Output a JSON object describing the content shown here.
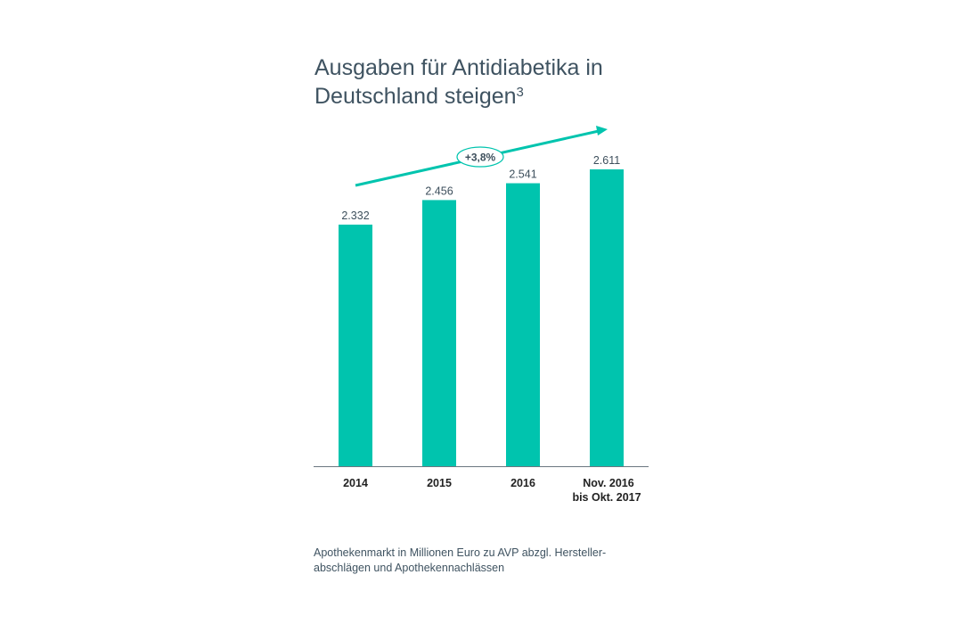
{
  "title": {
    "main": "Ausgaben für Antidiabetika in Deutschland steigen",
    "superscript": "3"
  },
  "chart_data": {
    "type": "bar",
    "categories": [
      "2014",
      "2015",
      "2016",
      "Nov. 2016|bis Okt. 2017"
    ],
    "values": [
      2332,
      2456,
      2541,
      2611
    ],
    "value_labels": [
      "2.332",
      "2.456",
      "2.541",
      "2.611"
    ],
    "ylim": [
      1112,
      2611
    ],
    "trend_annotation": "+3,8%",
    "bar_color": "#00c4ae",
    "xlabel": "",
    "ylabel": "",
    "grid": false
  },
  "footnote": "Apothekenmarkt in Millionen Euro zu AVP abzgl. Hersteller-abschlägen und Apothekennachlässen"
}
